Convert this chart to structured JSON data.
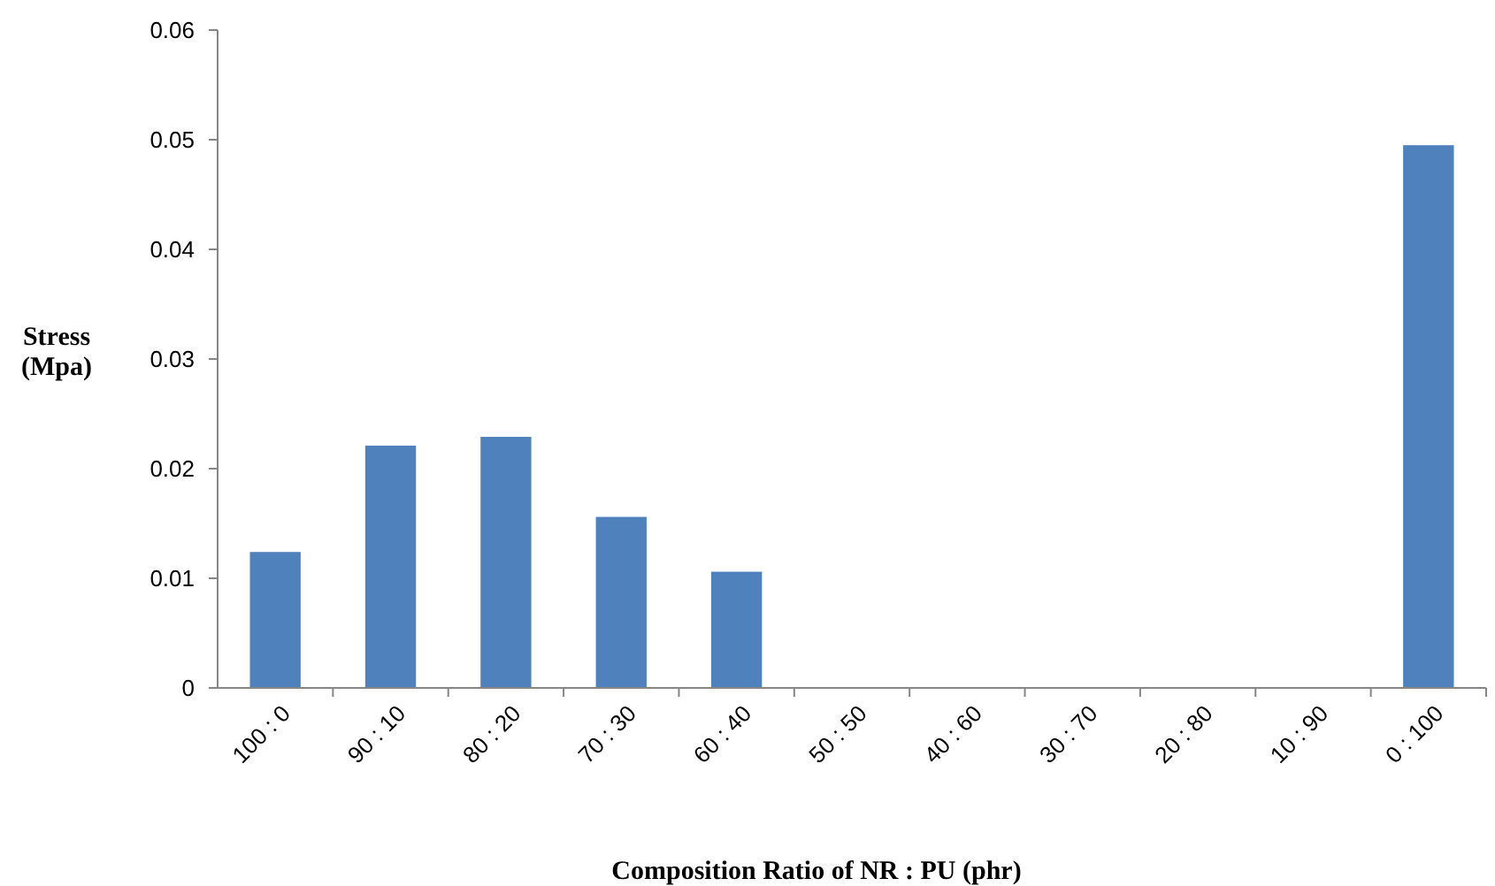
{
  "chart_data": {
    "type": "bar",
    "xlabel": "Composition Ratio of NR : PU (phr)",
    "ylabel": "Stress\n(Mpa)",
    "categories": [
      "100 : 0",
      "90 : 10",
      "80 : 20",
      "70 : 30",
      "60 : 40",
      "50 : 50",
      "40 : 60",
      "30 : 70",
      "20 : 80",
      "10 : 90",
      "0 : 100"
    ],
    "values": [
      0.0124,
      0.0221,
      0.0229,
      0.0156,
      0.0106,
      0,
      0,
      0,
      0,
      0,
      0.0495
    ],
    "color": "#4f81bd",
    "ylim": [
      0,
      0.06
    ],
    "yticks": [
      {
        "value": 0,
        "label": "0"
      },
      {
        "value": 0.01,
        "label": "0.01"
      },
      {
        "value": 0.02,
        "label": "0.02"
      },
      {
        "value": 0.03,
        "label": "0.03"
      },
      {
        "value": 0.04,
        "label": "0.04"
      },
      {
        "value": 0.05,
        "label": "0.05"
      },
      {
        "value": 0.06,
        "label": "0.06"
      }
    ],
    "grid": false
  }
}
